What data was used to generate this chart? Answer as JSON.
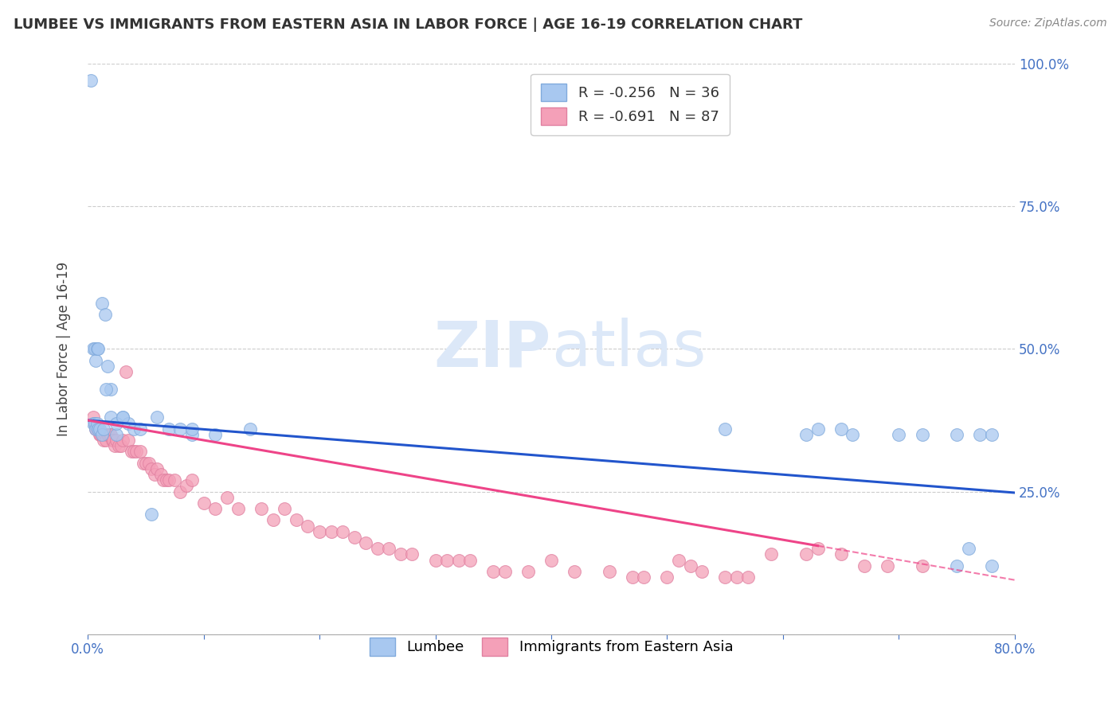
{
  "title": "LUMBEE VS IMMIGRANTS FROM EASTERN ASIA IN LABOR FORCE | AGE 16-19 CORRELATION CHART",
  "source": "Source: ZipAtlas.com",
  "ylabel": "In Labor Force | Age 16-19",
  "series1_label": "Lumbee",
  "series1_R": -0.256,
  "series1_N": 36,
  "series1_color": "#A8C8F0",
  "series1_edge": "#80AADC",
  "series2_label": "Immigrants from Eastern Asia",
  "series2_R": -0.691,
  "series2_N": 87,
  "series2_color": "#F4A0B8",
  "series2_edge": "#E080A0",
  "trendline1_color": "#2255CC",
  "trendline2_color": "#EE4488",
  "background": "#FFFFFF",
  "grid_color": "#CCCCCC",
  "xlim": [
    0.0,
    0.8
  ],
  "ylim": [
    0.0,
    1.0
  ],
  "watermark_color": "#DCE8F8",
  "series1_x": [
    0.003,
    0.005,
    0.006,
    0.007,
    0.008,
    0.009,
    0.012,
    0.015,
    0.017,
    0.02,
    0.025,
    0.03,
    0.035,
    0.04,
    0.055,
    0.07,
    0.09,
    0.11,
    0.14,
    0.55,
    0.63,
    0.65,
    0.72,
    0.75,
    0.78
  ],
  "series1_y": [
    0.97,
    0.5,
    0.5,
    0.48,
    0.5,
    0.5,
    0.58,
    0.56,
    0.47,
    0.43,
    0.35,
    0.38,
    0.37,
    0.36,
    0.21,
    0.36,
    0.35,
    0.35,
    0.36,
    0.36,
    0.36,
    0.36,
    0.35,
    0.35,
    0.12
  ],
  "series1_x2": [
    0.005,
    0.006,
    0.007,
    0.008,
    0.009,
    0.01,
    0.012,
    0.014,
    0.016,
    0.02,
    0.025,
    0.03,
    0.045,
    0.06,
    0.08,
    0.09,
    0.62,
    0.66,
    0.7,
    0.75,
    0.76,
    0.77,
    0.78
  ],
  "series1_y2": [
    0.37,
    0.37,
    0.36,
    0.37,
    0.36,
    0.36,
    0.35,
    0.36,
    0.43,
    0.38,
    0.37,
    0.38,
    0.36,
    0.38,
    0.36,
    0.36,
    0.35,
    0.35,
    0.35,
    0.12,
    0.15,
    0.35,
    0.35
  ],
  "series2_x": [
    0.005,
    0.006,
    0.007,
    0.008,
    0.009,
    0.01,
    0.011,
    0.012,
    0.013,
    0.014,
    0.015,
    0.016,
    0.017,
    0.018,
    0.019,
    0.02,
    0.021,
    0.022,
    0.023,
    0.025,
    0.027,
    0.029,
    0.03,
    0.033,
    0.035,
    0.038,
    0.04,
    0.042,
    0.045,
    0.048,
    0.05,
    0.053,
    0.055,
    0.058,
    0.06,
    0.063,
    0.065,
    0.068,
    0.07,
    0.075,
    0.08,
    0.085,
    0.09,
    0.1,
    0.11,
    0.12,
    0.13,
    0.15,
    0.16,
    0.17,
    0.18,
    0.19,
    0.2,
    0.21,
    0.22,
    0.23,
    0.24,
    0.25,
    0.26,
    0.27,
    0.28,
    0.3,
    0.31,
    0.32,
    0.33,
    0.35,
    0.36,
    0.38,
    0.4,
    0.42,
    0.45,
    0.47,
    0.48,
    0.5,
    0.51,
    0.52,
    0.53,
    0.55,
    0.56,
    0.57,
    0.59,
    0.62,
    0.63,
    0.65,
    0.67,
    0.69,
    0.72
  ],
  "series2_y": [
    0.38,
    0.37,
    0.36,
    0.36,
    0.36,
    0.35,
    0.35,
    0.35,
    0.35,
    0.34,
    0.35,
    0.34,
    0.35,
    0.35,
    0.35,
    0.35,
    0.34,
    0.34,
    0.33,
    0.34,
    0.33,
    0.33,
    0.34,
    0.46,
    0.34,
    0.32,
    0.32,
    0.32,
    0.32,
    0.3,
    0.3,
    0.3,
    0.29,
    0.28,
    0.29,
    0.28,
    0.27,
    0.27,
    0.27,
    0.27,
    0.25,
    0.26,
    0.27,
    0.23,
    0.22,
    0.24,
    0.22,
    0.22,
    0.2,
    0.22,
    0.2,
    0.19,
    0.18,
    0.18,
    0.18,
    0.17,
    0.16,
    0.15,
    0.15,
    0.14,
    0.14,
    0.13,
    0.13,
    0.13,
    0.13,
    0.11,
    0.11,
    0.11,
    0.13,
    0.11,
    0.11,
    0.1,
    0.1,
    0.1,
    0.13,
    0.12,
    0.11,
    0.1,
    0.1,
    0.1,
    0.14,
    0.14,
    0.15,
    0.14,
    0.12,
    0.12,
    0.12
  ],
  "trendline1_x_start": 0.0,
  "trendline1_x_end": 0.8,
  "trendline1_y_start": 0.375,
  "trendline1_y_end": 0.248,
  "trendline2_x_solid_start": 0.0,
  "trendline2_x_solid_end": 0.63,
  "trendline2_y_solid_start": 0.375,
  "trendline2_y_solid_end": 0.155,
  "trendline2_x_dash_start": 0.63,
  "trendline2_x_dash_end": 0.8,
  "trendline2_y_dash_start": 0.155,
  "trendline2_y_dash_end": 0.095
}
